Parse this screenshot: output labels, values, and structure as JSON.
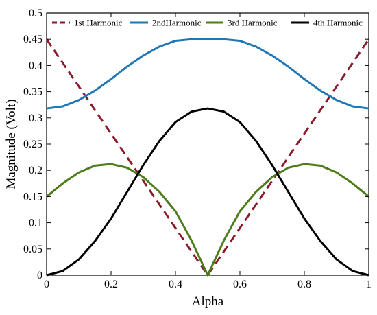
{
  "chart_data": {
    "type": "line",
    "xlabel": "Alpha",
    "ylabel": "Magnitude (Volt)",
    "xlim": [
      0,
      1
    ],
    "ylim": [
      0,
      0.5
    ],
    "xticks": [
      "0",
      "0.2",
      "0.4",
      "0.6",
      "0.8",
      "1"
    ],
    "yticks": [
      "0",
      "0.05",
      "0.1",
      "0.15",
      "0.2",
      "0.25",
      "0.3",
      "0.35",
      "0.4",
      "0.45",
      "0.5"
    ],
    "grid": false,
    "legend_position": "top",
    "x": [
      0,
      0.05,
      0.1,
      0.15,
      0.2,
      0.25,
      0.3,
      0.35,
      0.4,
      0.45,
      0.5,
      0.55,
      0.6,
      0.65,
      0.7,
      0.75,
      0.8,
      0.85,
      0.9,
      0.95,
      1
    ],
    "series": [
      {
        "name": "1st Harmonic",
        "color": "#8b1a2b",
        "dash": true,
        "values": [
          0.45,
          0.405,
          0.36,
          0.315,
          0.27,
          0.225,
          0.18,
          0.135,
          0.09,
          0.045,
          0.0,
          0.045,
          0.09,
          0.135,
          0.18,
          0.225,
          0.27,
          0.315,
          0.36,
          0.405,
          0.45
        ]
      },
      {
        "name": "2ndHarmonic",
        "color": "#1f77b4",
        "dash": false,
        "values": [
          0.318,
          0.322,
          0.334,
          0.352,
          0.374,
          0.398,
          0.419,
          0.436,
          0.447,
          0.45,
          0.45,
          0.45,
          0.447,
          0.436,
          0.419,
          0.398,
          0.374,
          0.352,
          0.334,
          0.322,
          0.318
        ]
      },
      {
        "name": "3rd Harmonic",
        "color": "#4e7c1a",
        "dash": false,
        "values": [
          0.15,
          0.175,
          0.196,
          0.209,
          0.212,
          0.205,
          0.187,
          0.159,
          0.122,
          0.066,
          0.0,
          0.066,
          0.122,
          0.159,
          0.187,
          0.205,
          0.212,
          0.209,
          0.196,
          0.175,
          0.15
        ]
      },
      {
        "name": "4th Harmonic",
        "color": "#000000",
        "dash": false,
        "values": [
          0.0,
          0.008,
          0.03,
          0.065,
          0.108,
          0.159,
          0.21,
          0.256,
          0.292,
          0.312,
          0.318,
          0.312,
          0.292,
          0.256,
          0.21,
          0.159,
          0.108,
          0.065,
          0.03,
          0.008,
          0.0
        ]
      }
    ]
  }
}
